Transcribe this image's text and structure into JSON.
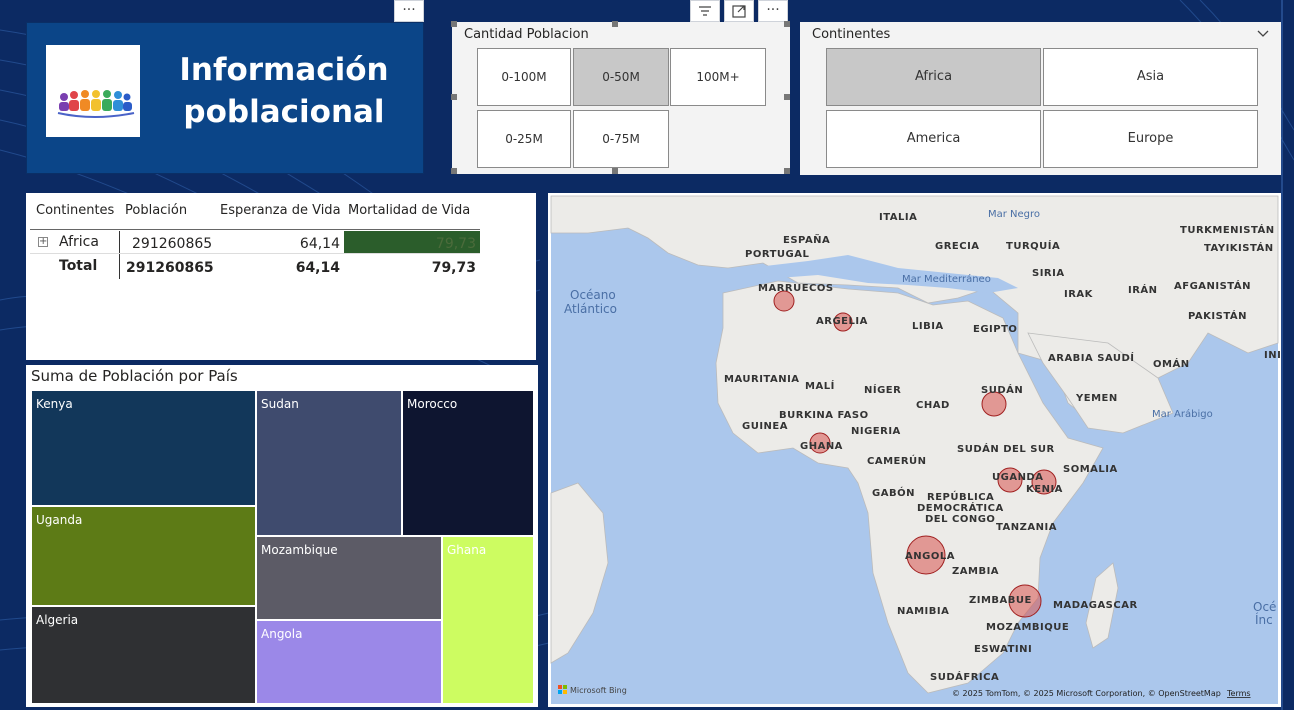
{
  "header": {
    "title_line1": "Información",
    "title_line2": "poblacional",
    "logo_icon": "people-group-icon"
  },
  "toolbar": {
    "more_label": "···"
  },
  "slicer_poblacion": {
    "title": "Cantidad Poblacion",
    "options": [
      {
        "label": "0-100M",
        "selected": false
      },
      {
        "label": "0-50M",
        "selected": true
      },
      {
        "label": "100M+",
        "selected": false
      },
      {
        "label": "0-25M",
        "selected": false
      },
      {
        "label": "0-75M",
        "selected": false
      }
    ]
  },
  "slicer_continentes": {
    "title": "Continentes",
    "options": [
      {
        "label": "Africa",
        "selected": true
      },
      {
        "label": "Asia",
        "selected": false
      },
      {
        "label": "America",
        "selected": false
      },
      {
        "label": "Europe",
        "selected": false
      }
    ]
  },
  "table": {
    "columns": [
      "Continentes",
      "Población",
      "Esperanza de Vida",
      "Mortalidad de Vida"
    ],
    "rows": [
      {
        "continente": "Africa",
        "poblacion": "291260865",
        "esperanza": "64,14",
        "mortalidad": "79,73",
        "expand_icon": "expand-plus-icon"
      }
    ],
    "total": {
      "label": "Total",
      "poblacion": "291260865",
      "esperanza": "64,14",
      "mortalidad": "79,73"
    },
    "mortalidad_bar_color": "#2b5d2b"
  },
  "treemap": {
    "title": "Suma de Población por País",
    "cells": [
      {
        "name": "Kenya",
        "color": "#12375a"
      },
      {
        "name": "Uganda",
        "color": "#5d7b16"
      },
      {
        "name": "Algeria",
        "color": "#2f3033"
      },
      {
        "name": "Sudan",
        "color": "#3f4b6e"
      },
      {
        "name": "Morocco",
        "color": "#0e1530"
      },
      {
        "name": "Mozambique",
        "color": "#5c5b66"
      },
      {
        "name": "Angola",
        "color": "#9b88e8"
      },
      {
        "name": "Ghana",
        "color": "#cdfc61"
      }
    ]
  },
  "map": {
    "countries": {
      "italia": "ITALIA",
      "espana": "ESPAÑA",
      "portugal": "PORTUGAL",
      "grecia": "GRECIA",
      "turquia": "TURQUÍA",
      "turkmenistan": "TURKMENISTÁN",
      "tayikistan": "TAYIKISTÁN",
      "siria": "SIRIA",
      "irak": "IRAK",
      "iran": "IRÁN",
      "afganistan": "AFGANISTÁN",
      "pakistan": "PAKISTÁN",
      "marruecos": "MARRUECOS",
      "argelia": "ARGELIA",
      "libia": "LIBIA",
      "egipto": "EGIPTO",
      "arabia": "ARABIA SAUDÍ",
      "oman": "OMÁN",
      "yemen": "YEMEN",
      "mauritania": "MAURITANIA",
      "mali": "MALÍ",
      "niger": "NÍGER",
      "chad": "CHAD",
      "sudan": "SUDÁN",
      "burkina": "BURKINA FASO",
      "guinea": "GUINEA",
      "ghana": "GHANA",
      "nigeria": "NIGERIA",
      "sudan_sur": "SUDÁN DEL SUR",
      "camerun": "CAMERÚN",
      "somalia": "SOMALIA",
      "uganda": "UGANDA",
      "kenia": "KENIA",
      "gabon": "GABÓN",
      "rdc1": "REPÚBLICA",
      "rdc2": "DEMOCRÁTICA",
      "rdc3": "DEL CONGO",
      "tanzania": "TANZANIA",
      "angola": "ANGOLA",
      "zambia": "ZAMBIA",
      "namibia": "NAMIBIA",
      "zimbabue": "ZIMBABUE",
      "madagascar": "MADAGASCAR",
      "mozambique": "MOZAMBIQUE",
      "esuatini": "ESWATINI",
      "sudafrica": "SUDÁFRICA",
      "ini": "INI"
    },
    "seas": {
      "mar_negro": "Mar Negro",
      "mediterraneo": "Mar Mediterráneo",
      "arabigo": "Mar Arábigo",
      "oceano1": "Océano",
      "oceano2": "Atlántico",
      "oce_right1": "Océ",
      "oce_right2": "Ínc"
    },
    "bubble_color": "#d9534f",
    "attribution": "© 2025 TomTom, © 2025 Microsoft Corporation, © OpenStreetMap",
    "terms": "Terms",
    "brand": "Microsoft Bing"
  }
}
